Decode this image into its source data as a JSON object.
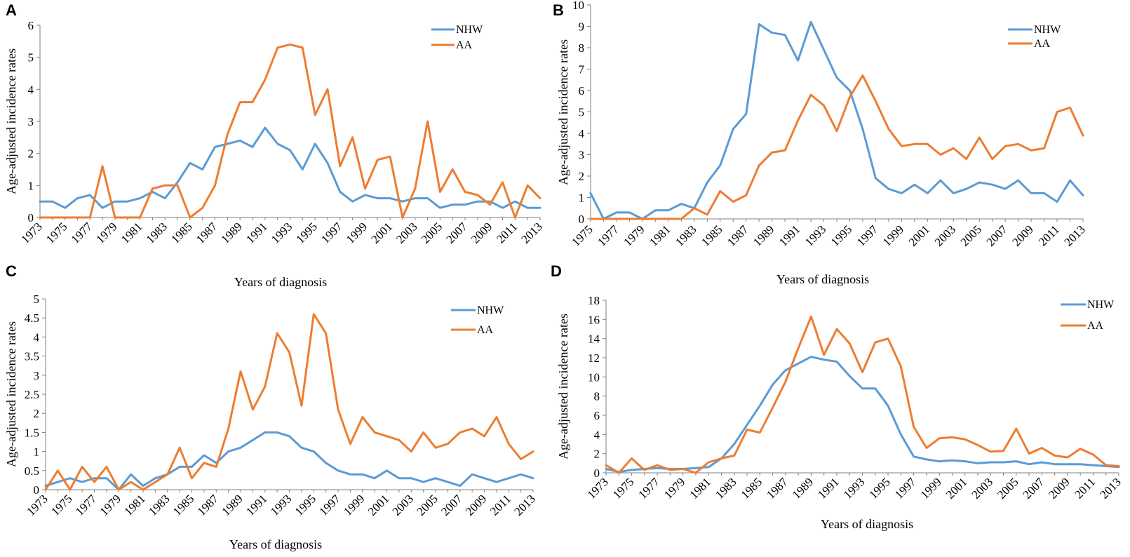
{
  "chart_data": [
    {
      "panel": "A",
      "type": "line",
      "ylabel": "Age-adjusted incidence  rates",
      "xlabel": "Years of diagnosis",
      "ylim": [
        0,
        6
      ],
      "yticks": [
        "0",
        "1",
        "2",
        "3",
        "4",
        "5",
        "6"
      ],
      "x": [
        1973,
        1974,
        1975,
        1976,
        1977,
        1978,
        1979,
        1980,
        1981,
        1982,
        1983,
        1984,
        1985,
        1986,
        1987,
        1988,
        1989,
        1990,
        1991,
        1992,
        1993,
        1994,
        1995,
        1996,
        1997,
        1998,
        1999,
        2000,
        2001,
        2002,
        2003,
        2004,
        2005,
        2006,
        2007,
        2008,
        2009,
        2010,
        2011,
        2012,
        2013
      ],
      "xtick_labels": [
        "1973",
        "1975",
        "1977",
        "1979",
        "1981",
        "1983",
        "1985",
        "1987",
        "1989",
        "1991",
        "1993",
        "1995",
        "1997",
        "1999",
        "2001",
        "2003",
        "2005",
        "2007",
        "2009",
        "2011",
        "2013"
      ],
      "legend": "top-right",
      "series": [
        {
          "name": "NHW",
          "color": "#5b9bd5",
          "values": [
            0.5,
            0.5,
            0.3,
            0.6,
            0.7,
            0.3,
            0.5,
            0.5,
            0.6,
            0.8,
            0.6,
            1.1,
            1.7,
            1.5,
            2.2,
            2.3,
            2.4,
            2.2,
            2.8,
            2.3,
            2.1,
            1.5,
            2.3,
            1.7,
            0.8,
            0.5,
            0.7,
            0.6,
            0.6,
            0.5,
            0.6,
            0.6,
            0.3,
            0.4,
            0.4,
            0.5,
            0.5,
            0.3,
            0.5,
            0.3,
            0.3
          ]
        },
        {
          "name": "AA",
          "color": "#ed7d31",
          "values": [
            0,
            0,
            0,
            0,
            0,
            1.6,
            0,
            0,
            0,
            0.9,
            1.0,
            1.0,
            0,
            0.3,
            1.0,
            2.6,
            3.6,
            3.6,
            4.3,
            5.3,
            5.4,
            5.3,
            3.2,
            4.0,
            1.6,
            2.5,
            0.9,
            1.8,
            1.9,
            0,
            0.9,
            3.0,
            0.8,
            1.5,
            0.8,
            0.7,
            0.4,
            1.1,
            0,
            1.0,
            0.6
          ]
        }
      ]
    },
    {
      "panel": "B",
      "type": "line",
      "ylabel": "Age-adjusted incidence rates",
      "xlabel": "Years of diagnosis",
      "ylim": [
        0,
        10
      ],
      "yticks": [
        "0",
        "1",
        "2",
        "3",
        "4",
        "5",
        "6",
        "7",
        "8",
        "9",
        "10"
      ],
      "x": [
        1975,
        1976,
        1977,
        1978,
        1979,
        1980,
        1981,
        1982,
        1983,
        1984,
        1985,
        1986,
        1987,
        1988,
        1989,
        1990,
        1991,
        1992,
        1993,
        1994,
        1995,
        1996,
        1997,
        1998,
        1999,
        2000,
        2001,
        2002,
        2003,
        2004,
        2005,
        2006,
        2007,
        2008,
        2009,
        2010,
        2011,
        2012,
        2013
      ],
      "xtick_labels": [
        "1975",
        "1977",
        "1979",
        "1981",
        "1983",
        "1985",
        "1987",
        "1989",
        "1991",
        "1993",
        "1995",
        "1997",
        "1999",
        "2001",
        "2003",
        "2005",
        "2007",
        "2009",
        "2011",
        "2013"
      ],
      "legend": "top-right",
      "series": [
        {
          "name": "NHW",
          "color": "#5b9bd5",
          "values": [
            1.2,
            0,
            0.3,
            0.3,
            0,
            0.4,
            0.4,
            0.7,
            0.5,
            1.7,
            2.5,
            4.2,
            4.9,
            9.1,
            8.7,
            8.6,
            7.4,
            9.2,
            7.9,
            6.6,
            6.0,
            4.2,
            1.9,
            1.4,
            1.2,
            1.6,
            1.2,
            1.8,
            1.2,
            1.4,
            1.7,
            1.6,
            1.4,
            1.8,
            1.2,
            1.2,
            0.8,
            1.8,
            1.1
          ]
        },
        {
          "name": "AA",
          "color": "#ed7d31",
          "values": [
            0,
            0,
            0,
            0,
            0,
            0,
            0,
            0,
            0.5,
            0.2,
            1.3,
            0.8,
            1.1,
            2.5,
            3.1,
            3.2,
            4.6,
            5.8,
            5.3,
            4.1,
            5.7,
            6.7,
            5.5,
            4.2,
            3.4,
            3.5,
            3.5,
            3.0,
            3.3,
            2.8,
            3.8,
            2.8,
            3.4,
            3.5,
            3.2,
            3.3,
            5.0,
            5.2,
            3.9
          ]
        }
      ]
    },
    {
      "panel": "C",
      "type": "line",
      "ylabel": "Age-adjusted incidence rates",
      "xlabel": "Years of diagnosis",
      "ylim": [
        0,
        5
      ],
      "yticks": [
        "0",
        "0.5",
        "1",
        "1.5",
        "2",
        "2.5",
        "3",
        "3.5",
        "4",
        "4.5",
        "5"
      ],
      "x": [
        1973,
        1974,
        1975,
        1976,
        1977,
        1978,
        1979,
        1980,
        1981,
        1982,
        1983,
        1984,
        1985,
        1986,
        1987,
        1988,
        1989,
        1990,
        1991,
        1992,
        1993,
        1994,
        1995,
        1996,
        1997,
        1998,
        1999,
        2000,
        2001,
        2002,
        2003,
        2004,
        2005,
        2006,
        2007,
        2008,
        2009,
        2010,
        2011,
        2012,
        2013
      ],
      "xtick_labels": [
        "1973",
        "1975",
        "1977",
        "1979",
        "1981",
        "1983",
        "1985",
        "1987",
        "1989",
        "1991",
        "1993",
        "1995",
        "1997",
        "1999",
        "2001",
        "2003",
        "2005",
        "2007",
        "2009",
        "2011",
        "2013"
      ],
      "legend": "top-right",
      "series": [
        {
          "name": "NHW",
          "color": "#5b9bd5",
          "values": [
            0.1,
            0.2,
            0.3,
            0.2,
            0.3,
            0.3,
            0,
            0.4,
            0.1,
            0.3,
            0.4,
            0.6,
            0.6,
            0.9,
            0.7,
            1.0,
            1.1,
            1.3,
            1.5,
            1.5,
            1.4,
            1.1,
            1.0,
            0.7,
            0.5,
            0.4,
            0.4,
            0.3,
            0.5,
            0.3,
            0.3,
            0.2,
            0.3,
            0.2,
            0.1,
            0.4,
            0.3,
            0.2,
            0.3,
            0.4,
            0.3
          ]
        },
        {
          "name": "AA",
          "color": "#ed7d31",
          "values": [
            0,
            0.5,
            0,
            0.6,
            0.2,
            0.6,
            0,
            0.2,
            0,
            0.2,
            0.4,
            1.1,
            0.3,
            0.7,
            0.6,
            1.6,
            3.1,
            2.1,
            2.7,
            4.1,
            3.6,
            2.2,
            4.6,
            4.1,
            2.1,
            1.2,
            1.9,
            1.5,
            1.4,
            1.3,
            1.0,
            1.5,
            1.1,
            1.2,
            1.5,
            1.6,
            1.4,
            1.9,
            1.2,
            0.8,
            1.0
          ]
        }
      ]
    },
    {
      "panel": "D",
      "type": "line",
      "ylabel": "Age-adjusted incidence rates",
      "xlabel": "Years of diagnosis",
      "ylim": [
        0,
        18
      ],
      "yticks": [
        "0",
        "2",
        "4",
        "6",
        "8",
        "10",
        "12",
        "14",
        "16",
        "18"
      ],
      "x": [
        1973,
        1974,
        1975,
        1976,
        1977,
        1978,
        1979,
        1980,
        1981,
        1982,
        1983,
        1984,
        1985,
        1986,
        1987,
        1988,
        1989,
        1990,
        1991,
        1992,
        1993,
        1994,
        1995,
        1996,
        1997,
        1998,
        1999,
        2000,
        2001,
        2002,
        2003,
        2004,
        2005,
        2006,
        2007,
        2008,
        2009,
        2010,
        2011,
        2012,
        2013
      ],
      "xtick_labels": [
        "1973",
        "1975",
        "1977",
        "1979",
        "1981",
        "1983",
        "1985",
        "1987",
        "1989",
        "1991",
        "1993",
        "1995",
        "1997",
        "1999",
        "2001",
        "2003",
        "2005",
        "2007",
        "2009",
        "2011",
        "2013"
      ],
      "legend": "top-right",
      "series": [
        {
          "name": "NHW",
          "color": "#5b9bd5",
          "values": [
            0.4,
            0.1,
            0.3,
            0.4,
            0.5,
            0.4,
            0.4,
            0.5,
            0.6,
            1.5,
            3.0,
            5.0,
            7.0,
            9.2,
            10.7,
            11.4,
            12.1,
            11.8,
            11.6,
            10.1,
            8.8,
            8.8,
            7.0,
            4.0,
            1.7,
            1.4,
            1.2,
            1.3,
            1.2,
            1.0,
            1.1,
            1.1,
            1.2,
            0.9,
            1.1,
            0.9,
            0.9,
            0.9,
            0.8,
            0.7,
            0.6
          ]
        },
        {
          "name": "AA",
          "color": "#ed7d31",
          "values": [
            0.8,
            0,
            1.5,
            0.3,
            0.8,
            0.3,
            0.4,
            0,
            1.1,
            1.5,
            1.8,
            4.5,
            4.2,
            6.8,
            9.5,
            13.0,
            16.3,
            12.3,
            15.0,
            13.5,
            10.5,
            13.6,
            14.0,
            11.1,
            4.8,
            2.6,
            3.6,
            3.7,
            3.5,
            2.9,
            2.2,
            2.3,
            4.6,
            2.0,
            2.6,
            1.8,
            1.6,
            2.5,
            1.9,
            0.8,
            0.7
          ]
        }
      ]
    }
  ]
}
